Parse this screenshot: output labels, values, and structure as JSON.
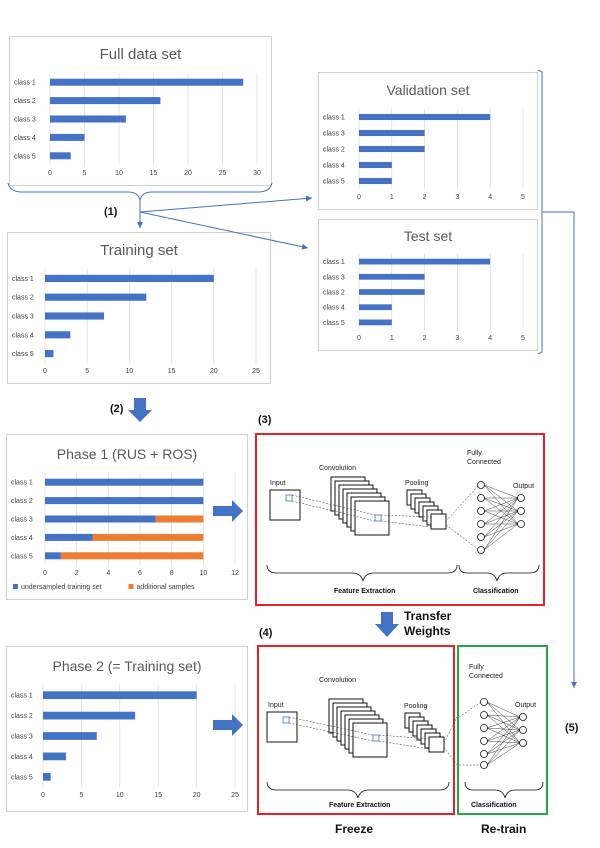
{
  "chart_data": [
    {
      "id": "full",
      "type": "bar",
      "orientation": "horizontal",
      "title": "Full data set",
      "categories": [
        "class 1",
        "class 2",
        "class 3",
        "class 4",
        "class 5"
      ],
      "values": [
        28,
        16,
        11,
        5,
        3
      ],
      "xlim": [
        0,
        30
      ],
      "xticks": [
        0,
        5,
        10,
        15,
        20,
        25,
        30
      ],
      "grid": true
    },
    {
      "id": "validation",
      "type": "bar",
      "orientation": "horizontal",
      "title": "Validation set",
      "categories": [
        "class 1",
        "class 3",
        "class 2",
        "class 4",
        "class 5"
      ],
      "values": [
        4,
        2,
        2,
        1,
        1
      ],
      "xlim": [
        0,
        5
      ],
      "xticks": [
        0,
        1,
        2,
        3,
        4,
        5
      ],
      "grid": true
    },
    {
      "id": "training",
      "type": "bar",
      "orientation": "horizontal",
      "title": "Training set",
      "categories": [
        "class 1",
        "class 2",
        "class 3",
        "class 4",
        "class 5"
      ],
      "values": [
        20,
        12,
        7,
        3,
        1
      ],
      "xlim": [
        0,
        25
      ],
      "xticks": [
        0,
        5,
        10,
        15,
        20,
        25
      ],
      "grid": true
    },
    {
      "id": "test",
      "type": "bar",
      "orientation": "horizontal",
      "title": "Test set",
      "categories": [
        "class 1",
        "class 3",
        "class 2",
        "class 4",
        "class 5"
      ],
      "values": [
        4,
        2,
        2,
        1,
        1
      ],
      "xlim": [
        0,
        5
      ],
      "xticks": [
        0,
        1,
        2,
        3,
        4,
        5
      ],
      "grid": true
    },
    {
      "id": "phase1",
      "type": "bar",
      "orientation": "horizontal",
      "stacked": true,
      "title": "Phase 1 (RUS + ROS)",
      "categories": [
        "class 1",
        "class 2",
        "class 3",
        "class 4",
        "class 5"
      ],
      "series": [
        {
          "name": "undersampled training set",
          "values": [
            10,
            10,
            7,
            3,
            1
          ]
        },
        {
          "name": "additional samples",
          "values": [
            0,
            0,
            3,
            7,
            9
          ]
        }
      ],
      "xlim": [
        0,
        12
      ],
      "xticks": [
        0,
        2,
        4,
        6,
        8,
        10,
        12
      ],
      "grid": true,
      "legend": "bottom"
    },
    {
      "id": "phase2",
      "type": "bar",
      "orientation": "horizontal",
      "title": "Phase 2 (= Training set)",
      "categories": [
        "class 1",
        "class 2",
        "class 3",
        "class 4",
        "class 5"
      ],
      "values": [
        20,
        12,
        7,
        3,
        1
      ],
      "xlim": [
        0,
        25
      ],
      "xticks": [
        0,
        5,
        10,
        15,
        20,
        25
      ],
      "grid": true
    }
  ],
  "colors": {
    "bar_blue": "#4472c4",
    "bar_orange": "#ed7d31",
    "arrow_blue": "#4472c4",
    "frame_red": "#e8202a",
    "frame_green": "#22a84a"
  },
  "labels": {
    "step1": "(1)",
    "step2": "(2)",
    "step3": "(3)",
    "step4": "(4)",
    "step5": "(5)",
    "transfer_line1": "Transfer",
    "transfer_line2": "Weights",
    "freeze": "Freeze",
    "retrain": "Re-train"
  },
  "cnn": {
    "input": "Input",
    "convolution": "Convolution",
    "pooling": "Pooling",
    "fully_connected_line1": "Fully",
    "fully_connected_line2": "Connected",
    "output": "Output",
    "feature_extraction": "Feature Extraction",
    "classification": "Classification"
  },
  "icons": [
    "down-arrow-icon",
    "right-arrow-icon"
  ]
}
